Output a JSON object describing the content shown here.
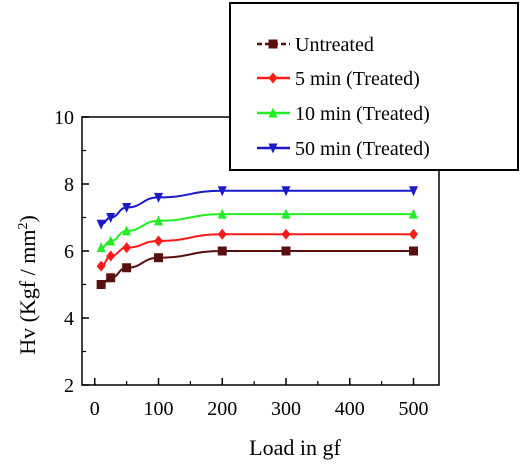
{
  "chart_data": {
    "type": "line",
    "title": "",
    "xlabel": "Load in gf",
    "ylabel": "Hv (Kgf / mm²)",
    "ylabel_base": "Hv (Kgf / mm",
    "ylabel_sup": "2",
    "ylabel_end": ")",
    "xlim": [
      -20,
      540
    ],
    "ylim": [
      2,
      10
    ],
    "xticks": [
      0,
      100,
      200,
      300,
      400,
      500
    ],
    "xtick_labels": [
      "0",
      "100",
      "200",
      "300",
      "400",
      "500"
    ],
    "yticks": [
      2,
      4,
      6,
      8,
      10
    ],
    "ytick_labels": [
      "2",
      "4",
      "6",
      "8",
      "10"
    ],
    "grid": false,
    "legend_position": "top-right",
    "x": [
      10,
      25,
      50,
      100,
      200,
      300,
      500
    ],
    "series": [
      {
        "name": "Untreated",
        "color": "#5a0f0f",
        "marker": "square",
        "values": [
          5.0,
          5.2,
          5.5,
          5.8,
          6.0,
          6.0,
          6.0
        ]
      },
      {
        "name": "5 min (Treated)",
        "color": "#ff1a1a",
        "marker": "diamond",
        "values": [
          5.55,
          5.85,
          6.1,
          6.3,
          6.5,
          6.5,
          6.5
        ]
      },
      {
        "name": "10 min (Treated)",
        "color": "#22ee22",
        "marker": "triangle-up",
        "values": [
          6.1,
          6.3,
          6.6,
          6.9,
          7.1,
          7.1,
          7.1
        ]
      },
      {
        "name": "50 min (Treated)",
        "color": "#1a1acc",
        "marker": "triangle-down",
        "values": [
          6.8,
          7.0,
          7.3,
          7.6,
          7.8,
          7.8,
          7.8
        ]
      }
    ]
  }
}
